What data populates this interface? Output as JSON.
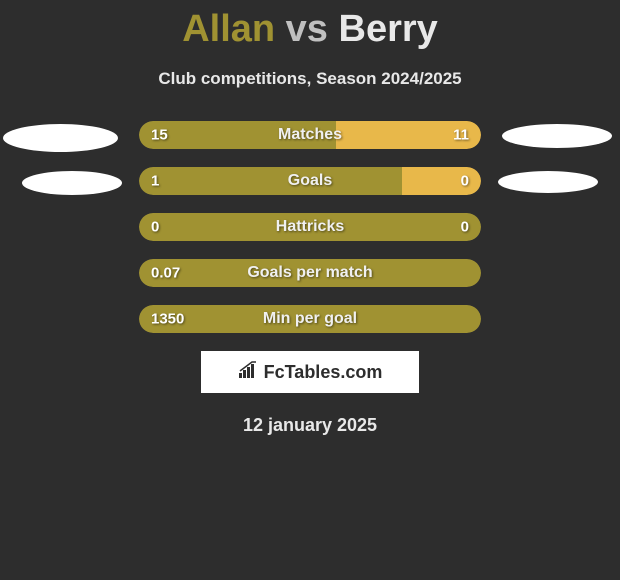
{
  "title": {
    "player1": "Allan",
    "vs": "vs",
    "player2": "Berry"
  },
  "subtitle": "Club competitions, Season 2024/2025",
  "logo_text": "FcTables.com",
  "date": "12 january 2025",
  "colors": {
    "background": "#2d2d2d",
    "player1_color": "#a09232",
    "player2_color": "#e8b84a",
    "text_light": "#e8e8e8",
    "text_white": "#ffffff",
    "ellipse": "#ffffff",
    "logo_bg": "#ffffff"
  },
  "bars": [
    {
      "label": "Matches",
      "value_left": "15",
      "value_right": "11",
      "left_pct": 57.7,
      "right_pct": 42.3
    },
    {
      "label": "Goals",
      "value_left": "1",
      "value_right": "0",
      "left_pct": 77,
      "right_pct": 23
    },
    {
      "label": "Hattricks",
      "value_left": "0",
      "value_right": "0",
      "left_pct": 100,
      "right_pct": 0
    },
    {
      "label": "Goals per match",
      "value_left": "0.07",
      "value_right": "",
      "left_pct": 100,
      "right_pct": 0
    },
    {
      "label": "Min per goal",
      "value_left": "1350",
      "value_right": "",
      "left_pct": 100,
      "right_pct": 0
    }
  ]
}
